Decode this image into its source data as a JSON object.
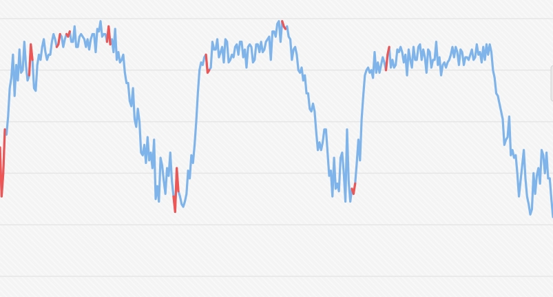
{
  "chart_data": {
    "type": "line",
    "title": "",
    "xlabel": "",
    "ylabel": "",
    "ylim": [
      0,
      100
    ],
    "xlim": [
      0,
      410
    ],
    "grid": true,
    "legend": "none",
    "gridlines_y": [
      100,
      80,
      60,
      40,
      20,
      0
    ],
    "colors": {
      "main_line": "#7eb4ea",
      "highlight_line": "#ee5555",
      "gridline": "#e6e6e6",
      "background": "#f4f4f4"
    },
    "series": [
      {
        "values": [
          50,
          31,
          40,
          57,
          55,
          62,
          73,
          77,
          86,
          70,
          82,
          76,
          88,
          79,
          80,
          91,
          82,
          76,
          78,
          90,
          84,
          73,
          72,
          82,
          86,
          84,
          89,
          92,
          87,
          84,
          86,
          86,
          91,
          94,
          92,
          89,
          90,
          94,
          93,
          89,
          92,
          94,
          93,
          95,
          91,
          91,
          97,
          89,
          89,
          93,
          94,
          93,
          92,
          89,
          92,
          88,
          92,
          94,
          94,
          87,
          96,
          95,
          99,
          93,
          94,
          94,
          91,
          97,
          90,
          92,
          87,
          96,
          84,
          87,
          83,
          84,
          86,
          79,
          75,
          75,
          68,
          66,
          73,
          61,
          58,
          65,
          60,
          48,
          47,
          51,
          44,
          54,
          45,
          48,
          42,
          53,
          30,
          35,
          29,
          46,
          43,
          37,
          32,
          42,
          39,
          48,
          37,
          31,
          25,
          42,
          33,
          31,
          28,
          27,
          29,
          32,
          41,
          38,
          47,
          44,
          51,
          60,
          71,
          80,
          83,
          82,
          85,
          86,
          79,
          80,
          81,
          91,
          88,
          88,
          92,
          85,
          87,
          89,
          83,
          92,
          91,
          83,
          84,
          86,
          85,
          89,
          90,
          86,
          91,
          91,
          85,
          88,
          81,
          89,
          90,
          89,
          83,
          84,
          90,
          90,
          87,
          91,
          87,
          88,
          91,
          92,
          93,
          84,
          95,
          95,
          93,
          98,
          99,
          91,
          99,
          97,
          96,
          97,
          93,
          92,
          84,
          88,
          89,
          86,
          80,
          79,
          81,
          76,
          78,
          71,
          71,
          65,
          64,
          67,
          64,
          56,
          49,
          52,
          49,
          52,
          57,
          57,
          48,
          39,
          41,
          31,
          46,
          34,
          36,
          33,
          46,
          48,
          40,
          29,
          57,
          37,
          29,
          34,
          32,
          36,
          44,
          53,
          45,
          61,
          70,
          78,
          80,
          81,
          79,
          80,
          77,
          87,
          79,
          83,
          79,
          82,
          85,
          83,
          80,
          86,
          89,
          81,
          84,
          81,
          82,
          88,
          87,
          89,
          87,
          83,
          86,
          78,
          88,
          84,
          81,
          89,
          84,
          84,
          89,
          90,
          84,
          88,
          85,
          79,
          88,
          87,
          81,
          84,
          84,
          91,
          82,
          85,
          78,
          82,
          83,
          81,
          83,
          84,
          86,
          89,
          85,
          89,
          87,
          82,
          88,
          87,
          82,
          85,
          85,
          84,
          86,
          88,
          84,
          85,
          90,
          86,
          87,
          83,
          89,
          84,
          90,
          86,
          90,
          87,
          80,
          77,
          71,
          70,
          67,
          64,
          61,
          51,
          53,
          54,
          62,
          47,
          49,
          46,
          47,
          40,
          31,
          37,
          43,
          49,
          38,
          31,
          28,
          24,
          26,
          40,
          32,
          39,
          42,
          36,
          49,
          47,
          40,
          48,
          38,
          38,
          30,
          23
        ]
      }
    ],
    "highlight_segments": [
      [
        0,
        3
      ],
      [
        18,
        20
      ],
      [
        35,
        37
      ],
      [
        41,
        43
      ],
      [
        66,
        68
      ],
      [
        107,
        110
      ],
      [
        127,
        129
      ],
      [
        174,
        176
      ],
      [
        217,
        219
      ],
      [
        238,
        240
      ]
    ]
  }
}
